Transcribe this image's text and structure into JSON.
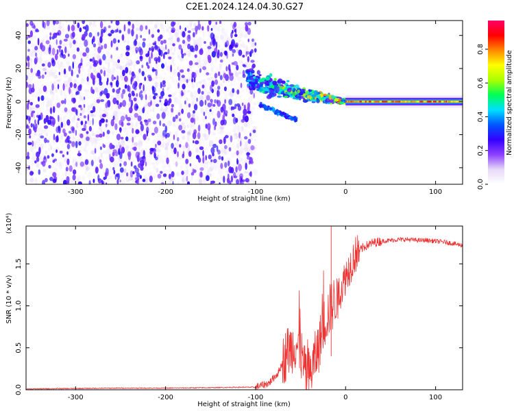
{
  "title": "C2E1.2024.124.04.30.G27",
  "chart_data": [
    {
      "type": "heatmap",
      "xlabel": "Height of straight line (km)",
      "ylabel": "Frequency (Hz)",
      "xlim": [
        -355,
        130
      ],
      "ylim": [
        -50,
        49
      ],
      "xticks": [
        -300,
        -200,
        -100,
        0,
        100
      ],
      "yticks": [
        -40,
        -20,
        0,
        20,
        40
      ],
      "colorbar": {
        "label": "Normalized spectral amplitude",
        "range": [
          0,
          0.97
        ],
        "ticks": [
          0.0,
          0.2,
          0.4,
          0.6,
          0.8
        ],
        "tick_labels": [
          "0.0",
          "0.2",
          "0.4",
          "0.6",
          "0.8"
        ],
        "colormap": [
          "#ffffff",
          "#e6d9f7",
          "#8c40ff",
          "#3300ff",
          "#0055ff",
          "#00e0ff",
          "#00ff55",
          "#aaff00",
          "#ffff00",
          "#ff8800",
          "#ff0000",
          "#ff0066"
        ]
      },
      "regions": [
        {
          "name": "noise",
          "x_range": [
            -355,
            -100
          ],
          "f_range": [
            -50,
            49
          ],
          "amplitude_range": [
            0.02,
            0.15
          ]
        },
        {
          "name": "transition",
          "x_range": [
            -110,
            0
          ],
          "f_start": 16,
          "f_end": 0,
          "amplitude_range": [
            0.1,
            0.9
          ]
        },
        {
          "name": "signal",
          "x_range": [
            0,
            130
          ],
          "f_center": 0,
          "amplitude_range": [
            0.4,
            0.9
          ]
        }
      ]
    },
    {
      "type": "line",
      "xlabel": "Height of straight line (km)",
      "ylabel": "SNR (10 * v/v)",
      "scale_label": "(x10⁴)",
      "xlim": [
        -355,
        130
      ],
      "ylim": [
        0,
        1.95
      ],
      "xticks": [
        -300,
        -200,
        -100,
        0,
        100
      ],
      "yticks": [
        0.0,
        0.5,
        1.0,
        1.5
      ],
      "ytick_labels": [
        "0.0",
        "0.5",
        "1.0",
        "1.5"
      ],
      "color": "#ee3333",
      "series": [
        {
          "x": [
            -355,
            -300,
            -250,
            -200,
            -150,
            -120,
            -100,
            -85,
            -75,
            -65,
            -55,
            -50,
            -45,
            -40,
            -35,
            -30,
            -25,
            -20,
            -15,
            -10,
            -5,
            0,
            10,
            20,
            30,
            40,
            50,
            60,
            70,
            80,
            90,
            100,
            110,
            120,
            130
          ],
          "y": [
            0.01,
            0.015,
            0.02,
            0.02,
            0.025,
            0.03,
            0.03,
            0.08,
            0.2,
            0.45,
            0.55,
            0.45,
            0.2,
            0.15,
            0.35,
            0.5,
            0.75,
            0.9,
            1.0,
            1.1,
            1.2,
            1.35,
            1.6,
            1.7,
            1.75,
            1.77,
            1.78,
            1.79,
            1.79,
            1.78,
            1.78,
            1.77,
            1.76,
            1.74,
            1.72
          ]
        }
      ]
    }
  ]
}
